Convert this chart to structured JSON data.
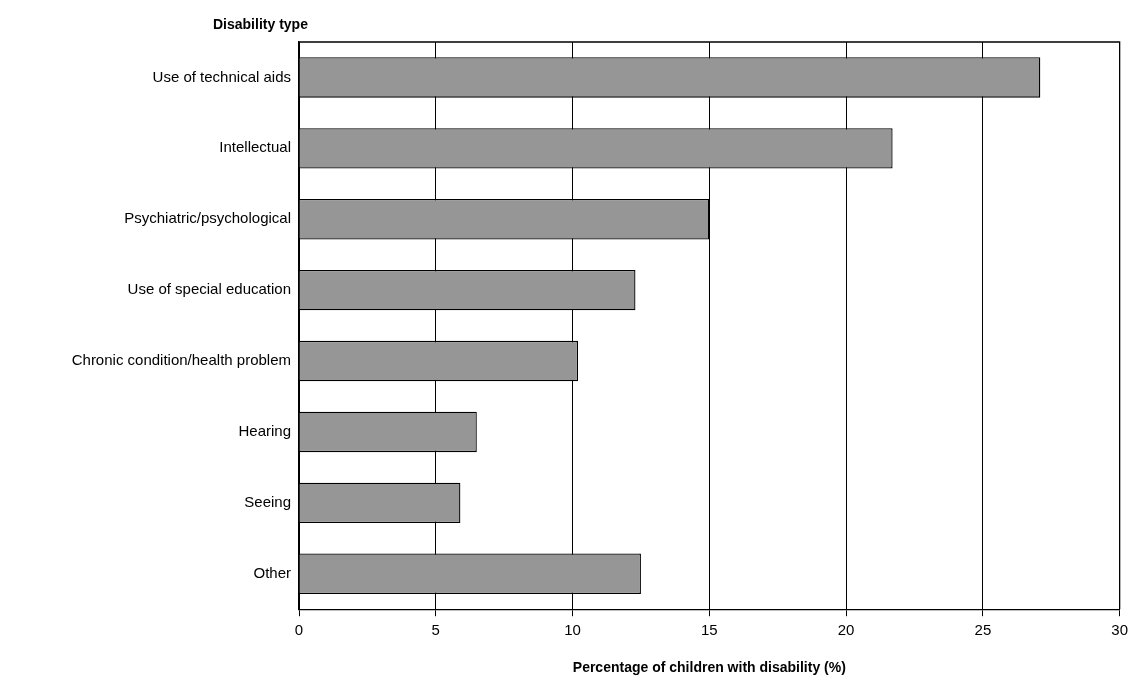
{
  "chart_data": {
    "type": "bar",
    "orientation": "horizontal",
    "ylabel": "Disability type",
    "xlabel": "Percentage of children with disability (%)",
    "categories": [
      "Use of technical aids",
      "Intellectual",
      "Psychiatric/psychological",
      "Use of special education",
      "Chronic condition/health problem",
      "Hearing",
      "Seeing",
      "Other"
    ],
    "values": [
      27.1,
      21.7,
      15.0,
      12.3,
      10.2,
      6.5,
      5.9,
      12.5
    ],
    "color": "#969696",
    "xlim": [
      0,
      30
    ],
    "xticks": [
      0,
      5,
      10,
      15,
      20,
      25,
      30
    ],
    "grid": "x",
    "legend": false
  }
}
